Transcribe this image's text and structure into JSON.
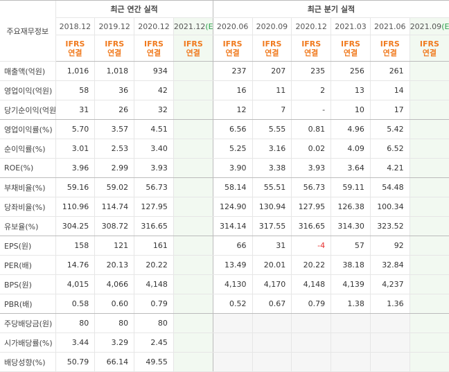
{
  "table": {
    "corner": "주요재무정보",
    "groups": [
      {
        "title": "최근 연간 실적",
        "span": 4
      },
      {
        "title": "최근 분기 실적",
        "span": 6
      }
    ],
    "columns": [
      {
        "period": "2018.12",
        "standard": "IFRS",
        "basis": "연결"
      },
      {
        "period": "2019.12",
        "standard": "IFRS",
        "basis": "연결"
      },
      {
        "period": "2020.12",
        "standard": "IFRS",
        "basis": "연결"
      },
      {
        "period": "2021.12",
        "flag": "(E)",
        "standard": "IFRS",
        "basis": "연결"
      },
      {
        "period": "2020.06",
        "standard": "IFRS",
        "basis": "연결"
      },
      {
        "period": "2020.09",
        "standard": "IFRS",
        "basis": "연결"
      },
      {
        "period": "2020.12",
        "standard": "IFRS",
        "basis": "연결"
      },
      {
        "period": "2021.03",
        "standard": "IFRS",
        "basis": "연결"
      },
      {
        "period": "2021.06",
        "standard": "IFRS",
        "basis": "연결"
      },
      {
        "period": "2021.09",
        "flag": "(E)",
        "standard": "IFRS",
        "basis": "연결"
      }
    ],
    "row_groups": [
      3,
      3,
      3,
      4,
      3
    ],
    "rows": [
      {
        "label": "매출액(억원)",
        "values": [
          "1,016",
          "1,018",
          "934",
          null,
          "237",
          "207",
          "235",
          "256",
          "261",
          null
        ]
      },
      {
        "label": "영업이익(억원)",
        "values": [
          "58",
          "36",
          "42",
          null,
          "16",
          "11",
          "2",
          "13",
          "14",
          null
        ]
      },
      {
        "label": "당기순이익(억원)",
        "values": [
          "31",
          "26",
          "32",
          null,
          "12",
          "7",
          "-",
          "10",
          "17",
          null
        ]
      },
      {
        "label": "영업이익률(%)",
        "values": [
          "5.70",
          "3.57",
          "4.51",
          null,
          "6.56",
          "5.55",
          "0.81",
          "4.96",
          "5.42",
          null
        ]
      },
      {
        "label": "순이익률(%)",
        "values": [
          "3.01",
          "2.53",
          "3.40",
          null,
          "5.25",
          "3.16",
          "0.02",
          "4.09",
          "6.52",
          null
        ]
      },
      {
        "label": "ROE(%)",
        "values": [
          "3.96",
          "2.99",
          "3.93",
          null,
          "3.90",
          "3.38",
          "3.93",
          "3.64",
          "4.21",
          null
        ]
      },
      {
        "label": "부채비율(%)",
        "values": [
          "59.16",
          "59.02",
          "56.73",
          null,
          "58.14",
          "55.51",
          "56.73",
          "59.11",
          "54.48",
          null
        ]
      },
      {
        "label": "당좌비율(%)",
        "values": [
          "110.96",
          "114.74",
          "127.95",
          null,
          "124.90",
          "130.94",
          "127.95",
          "126.38",
          "100.34",
          null
        ]
      },
      {
        "label": "유보율(%)",
        "values": [
          "304.25",
          "308.72",
          "316.65",
          null,
          "314.14",
          "317.55",
          "316.65",
          "314.30",
          "323.52",
          null
        ]
      },
      {
        "label": "EPS(원)",
        "values": [
          "158",
          "121",
          "161",
          null,
          "66",
          "31",
          "-4",
          "57",
          "92",
          null
        ]
      },
      {
        "label": "PER(배)",
        "values": [
          "14.76",
          "20.13",
          "20.22",
          null,
          "13.49",
          "20.01",
          "20.22",
          "38.18",
          "32.84",
          null
        ]
      },
      {
        "label": "BPS(원)",
        "values": [
          "4,015",
          "4,066",
          "4,148",
          null,
          "4,130",
          "4,170",
          "4,148",
          "4,139",
          "4,237",
          null
        ]
      },
      {
        "label": "PBR(배)",
        "values": [
          "0.58",
          "0.60",
          "0.79",
          null,
          "0.52",
          "0.67",
          "0.79",
          "1.38",
          "1.36",
          null
        ]
      },
      {
        "label": "주당배당금(원)",
        "values": [
          "80",
          "80",
          "80",
          null,
          null,
          null,
          null,
          null,
          null,
          null
        ]
      },
      {
        "label": "시가배당률(%)",
        "values": [
          "3.44",
          "3.29",
          "2.45",
          null,
          null,
          null,
          null,
          null,
          null,
          null
        ]
      },
      {
        "label": "배당성향(%)",
        "values": [
          "50.79",
          "66.14",
          "49.55",
          null,
          null,
          null,
          null,
          null,
          null,
          null
        ]
      }
    ]
  }
}
